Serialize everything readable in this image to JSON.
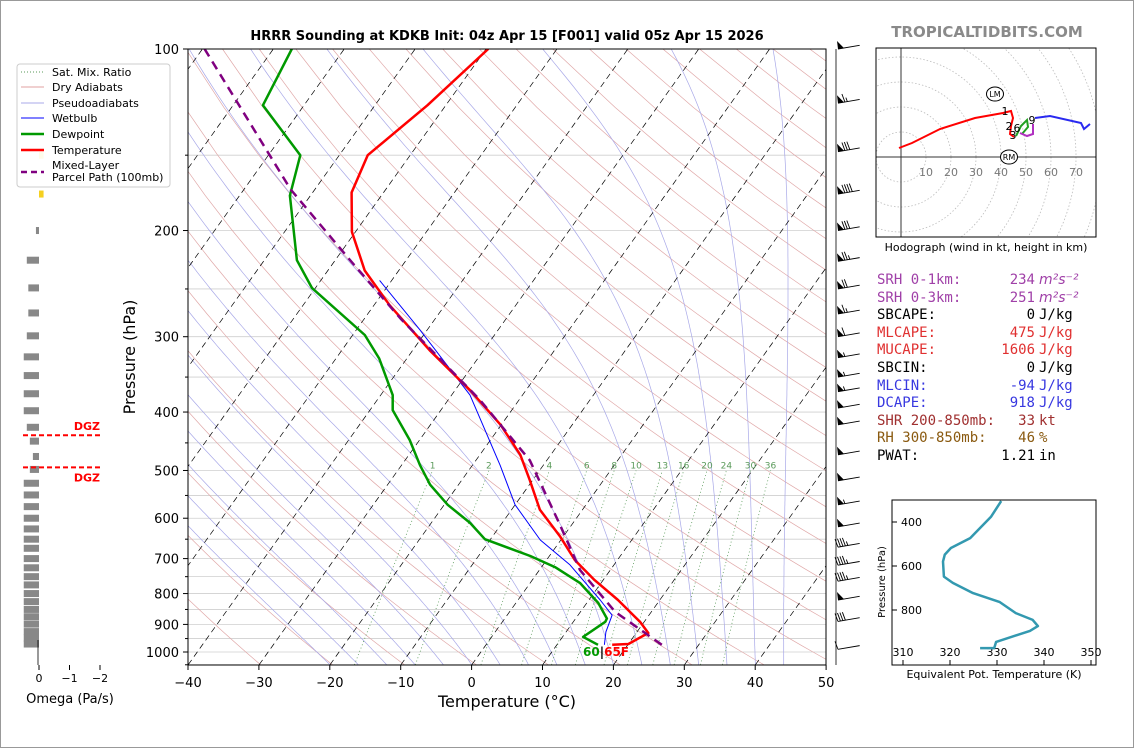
{
  "header": {
    "title": "HRRR Sounding at KDKB Init: 04z Apr 15 [F001] valid 05z Apr 15 2026",
    "site": "TROPICALTIDBITS.COM"
  },
  "legend": {
    "items": [
      {
        "label": "Sat. Mix. Ratio",
        "color": "#5a9a5a"
      },
      {
        "label": "Dry Adiabats",
        "color": "#e0a0a0"
      },
      {
        "label": "Pseudoadiabats",
        "color": "#a8a8e8"
      },
      {
        "label": "Wetbulb",
        "color": "#0000ff"
      },
      {
        "label": "Dewpoint",
        "color": "#009900"
      },
      {
        "label": "Temperature",
        "color": "#ff0000"
      },
      {
        "label": "Mixed-Layer",
        "label2": "Parcel Path (100mb)",
        "color": "#800080"
      }
    ]
  },
  "chart_data": {
    "type": "line",
    "title": "HRRR Sounding at KDKB Init: 04z Apr 15 [F001] valid 05z Apr 15 2026",
    "xlabel": "Temperature (°C)",
    "ylabel": "Pressure (hPa)",
    "xlim": [
      -40,
      50
    ],
    "ylim": [
      1050,
      100
    ],
    "grid": true,
    "legend_position": "top-left",
    "x_ticks": [
      {
        "value": -40,
        "label": "−40"
      },
      {
        "value": -30,
        "label": "−30"
      },
      {
        "value": -20,
        "label": "−20"
      },
      {
        "value": -10,
        "label": "−10"
      },
      {
        "value": 0,
        "label": "0"
      },
      {
        "value": 10,
        "label": "10"
      },
      {
        "value": 20,
        "label": "20"
      },
      {
        "value": 30,
        "label": "30"
      },
      {
        "value": 40,
        "label": "40"
      },
      {
        "value": 50,
        "label": "50"
      }
    ],
    "y_ticks": [
      {
        "value": 100,
        "label": "100"
      },
      {
        "value": 200,
        "label": "200"
      },
      {
        "value": 300,
        "label": "300"
      },
      {
        "value": 400,
        "label": "400"
      },
      {
        "value": 500,
        "label": "500"
      },
      {
        "value": 600,
        "label": "600"
      },
      {
        "value": 700,
        "label": "700"
      },
      {
        "value": 800,
        "label": "800"
      },
      {
        "value": 900,
        "label": "900"
      },
      {
        "value": 1000,
        "label": "1000"
      }
    ],
    "mixing_ratio_lines": [
      {
        "value": 1,
        "label": "1"
      },
      {
        "value": 2,
        "label": "2"
      },
      {
        "value": 4,
        "label": "4"
      },
      {
        "value": 6,
        "label": "6"
      },
      {
        "value": 8,
        "label": "8"
      },
      {
        "value": 10,
        "label": "10"
      },
      {
        "value": 13,
        "label": "13"
      },
      {
        "value": 16,
        "label": "16"
      },
      {
        "value": 20,
        "label": "20"
      },
      {
        "value": 24,
        "label": "24"
      },
      {
        "value": 30,
        "label": "30"
      },
      {
        "value": 36,
        "label": "36"
      }
    ],
    "series": [
      {
        "name": "Wetbulb",
        "color": "#0000ff",
        "points": [
          [
            973,
            16.7
          ],
          [
            926,
            15.6
          ],
          [
            869,
            14.8
          ],
          [
            820,
            11.6
          ],
          [
            717,
            3.8
          ],
          [
            652,
            -2.9
          ],
          [
            570,
            -10.0
          ],
          [
            490,
            -16.1
          ],
          [
            375,
            -27.4
          ],
          [
            292,
            -41.1
          ],
          [
            242,
            -51.7
          ]
        ]
      },
      {
        "name": "Dewpoint",
        "color": "#009900",
        "points": [
          [
            973,
            15.8
          ],
          [
            944,
            12.9
          ],
          [
            891,
            14.5
          ],
          [
            880,
            14.4
          ],
          [
            829,
            11.6
          ],
          [
            768,
            7.0
          ],
          [
            723,
            1.9
          ],
          [
            693,
            -2.7
          ],
          [
            650,
            -10.8
          ],
          [
            611,
            -14.5
          ],
          [
            570,
            -19.5
          ],
          [
            528,
            -24.0
          ],
          [
            490,
            -27.4
          ],
          [
            445,
            -31.4
          ],
          [
            397,
            -36.8
          ],
          [
            375,
            -38.3
          ],
          [
            326,
            -43.9
          ],
          [
            298,
            -48.3
          ],
          [
            249,
            -60.5
          ],
          [
            224,
            -65.4
          ],
          [
            175,
            -72.9
          ],
          [
            150,
            -75.5
          ],
          [
            124,
            -85.8
          ],
          [
            100,
            -87.4
          ]
        ]
      },
      {
        "name": "Temperature",
        "color": "#ff0000",
        "points": [
          [
            973,
            17.8
          ],
          [
            970,
            20.0
          ],
          [
            930,
            21.7
          ],
          [
            891,
            19.4
          ],
          [
            820,
            14.1
          ],
          [
            760,
            8.8
          ],
          [
            704,
            4.0
          ],
          [
            644,
            -0.4
          ],
          [
            581,
            -6.0
          ],
          [
            519,
            -10.4
          ],
          [
            471,
            -14.3
          ],
          [
            420,
            -20.1
          ],
          [
            368,
            -27.9
          ],
          [
            316,
            -37.6
          ],
          [
            266,
            -47.8
          ],
          [
            233,
            -54.8
          ],
          [
            201,
            -60.5
          ],
          [
            173,
            -64.5
          ],
          [
            150,
            -66.0
          ],
          [
            124,
            -62.6
          ],
          [
            100,
            -59.7
          ]
        ]
      },
      {
        "name": "Mixed-Layer Parcel Path (100mb)",
        "color": "#800080",
        "points": [
          [
            973,
            24.8
          ],
          [
            858,
            14.9
          ],
          [
            731,
            5.7
          ],
          [
            616,
            -1.6
          ],
          [
            481,
            -12.4
          ],
          [
            382,
            -25.5
          ],
          [
            280,
            -44.9
          ],
          [
            224,
            -57.9
          ],
          [
            171,
            -73.4
          ],
          [
            100,
            -99.7
          ]
        ]
      }
    ],
    "surface_labels": {
      "td": "60",
      "sep": "|",
      "t": "65F"
    },
    "wind_barbs": [
      {
        "p": 100,
        "kt": 50
      },
      {
        "p": 123,
        "kt": 65
      },
      {
        "p": 148,
        "kt": 80
      },
      {
        "p": 174,
        "kt": 90
      },
      {
        "p": 200,
        "kt": 80
      },
      {
        "p": 225,
        "kt": 75
      },
      {
        "p": 250,
        "kt": 70
      },
      {
        "p": 275,
        "kt": 65
      },
      {
        "p": 300,
        "kt": 60
      },
      {
        "p": 325,
        "kt": 55
      },
      {
        "p": 350,
        "kt": 55
      },
      {
        "p": 370,
        "kt": 55
      },
      {
        "p": 394,
        "kt": 50
      },
      {
        "p": 420,
        "kt": 50
      },
      {
        "p": 471,
        "kt": 50
      },
      {
        "p": 520,
        "kt": 50
      },
      {
        "p": 570,
        "kt": 55
      },
      {
        "p": 620,
        "kt": 50
      },
      {
        "p": 670,
        "kt": 45
      },
      {
        "p": 718,
        "kt": 45
      },
      {
        "p": 763,
        "kt": 45
      },
      {
        "p": 820,
        "kt": 50
      },
      {
        "p": 890,
        "kt": 40
      },
      {
        "p": 990,
        "kt": 10
      }
    ],
    "omega": {
      "xlabel": "Omega (Pa/s)",
      "x_ticks": [
        {
          "value": 0,
          "label": "0"
        },
        {
          "value": -1,
          "label": "−1"
        },
        {
          "value": -2,
          "label": "−2"
        }
      ],
      "dgz_label": "DGZ",
      "dgz_top": 437,
      "dgz_bottom": 494,
      "levels": [
        [
          150,
          -0.15
        ],
        [
          174,
          -0.15
        ],
        [
          200,
          0.1
        ],
        [
          224,
          0.4
        ],
        [
          249,
          0.35
        ],
        [
          274,
          0.35
        ],
        [
          299,
          0.4
        ],
        [
          324,
          0.5
        ],
        [
          348,
          0.5
        ],
        [
          373,
          0.5
        ],
        [
          398,
          0.5
        ],
        [
          424,
          0.4
        ],
        [
          447,
          0.3
        ],
        [
          474,
          0.2
        ],
        [
          498,
          0.3
        ],
        [
          525,
          0.5
        ],
        [
          549,
          0.5
        ],
        [
          574,
          0.5
        ],
        [
          600,
          0.5
        ],
        [
          625,
          0.5
        ],
        [
          650,
          0.5
        ],
        [
          673,
          0.5
        ],
        [
          700,
          0.5
        ],
        [
          725,
          0.5
        ],
        [
          750,
          0.5
        ],
        [
          774,
          0.5
        ],
        [
          800,
          0.5
        ],
        [
          825,
          0.5
        ],
        [
          850,
          0.5
        ],
        [
          874,
          0.5
        ],
        [
          899,
          0.5
        ],
        [
          925,
          0.5
        ],
        [
          948,
          0.5
        ],
        [
          970,
          0.5
        ]
      ]
    },
    "hodograph": {
      "caption": "Hodograph (wind in kt, height in km)",
      "ring_labels": [
        "10",
        "20",
        "30",
        "40",
        "50",
        "60",
        "70"
      ],
      "segments": [
        {
          "color": "#ff0000",
          "uv": [
            [
              -0.8,
              3.6
            ],
            [
              4.4,
              5.6
            ],
            [
              15.6,
              11.2
            ],
            [
              29.6,
              15.6
            ],
            [
              40.8,
              17.6
            ],
            [
              44,
              18.4
            ],
            [
              44.8,
              15.6
            ],
            [
              44,
              12.4
            ],
            [
              43.6,
              9.2
            ],
            [
              45.2,
              8
            ]
          ]
        },
        {
          "color": "#22a022",
          "uv": [
            [
              46,
              8.4
            ],
            [
              48,
              12.4
            ],
            [
              50.4,
              14.8
            ],
            [
              50.8,
              12
            ],
            [
              48.4,
              9.2
            ]
          ]
        },
        {
          "color": "#b030c0",
          "uv": [
            [
              47.6,
              9.6
            ],
            [
              50.4,
              8.4
            ],
            [
              52.8,
              9.2
            ],
            [
              52.8,
              13.2
            ]
          ]
        },
        {
          "color": "#2a2af0",
          "uv": [
            [
              53.6,
              15.6
            ],
            [
              59.6,
              16.4
            ],
            [
              72,
              13.6
            ],
            [
              73.2,
              11.2
            ],
            [
              75.6,
              13.2
            ]
          ]
        }
      ],
      "height_labels": [
        {
          "text": "1",
          "uv": [
            41.6,
            18.4
          ]
        },
        {
          "text": "2",
          "uv": [
            43.2,
            12.4
          ]
        },
        {
          "text": "6",
          "uv": [
            46.4,
            11.6
          ]
        },
        {
          "text": "3",
          "uv": [
            44.8,
            8.8
          ]
        },
        {
          "text": "9",
          "uv": [
            52.4,
            14.8
          ]
        }
      ],
      "storm_motion": [
        {
          "text": "LM",
          "uv": [
            37.6,
            25.2
          ]
        },
        {
          "text": "RM",
          "uv": [
            43.2,
            0
          ]
        }
      ]
    },
    "theta_e": {
      "xlabel": "Equivalent Pot. Temperature (K)",
      "ylabel": "Pressure (hPa)",
      "x_ticks": [
        "310",
        "320",
        "330",
        "340",
        "350"
      ],
      "y_ticks": [
        "400",
        "600",
        "800"
      ],
      "color": "#3399b0",
      "points": [
        [
          305,
          330.9
        ],
        [
          377,
          328.7
        ],
        [
          473,
          324.3
        ],
        [
          518,
          320.2
        ],
        [
          548,
          318.9
        ],
        [
          580,
          318.5
        ],
        [
          648,
          318.7
        ],
        [
          677,
          320.6
        ],
        [
          723,
          324.9
        ],
        [
          764,
          330.6
        ],
        [
          814,
          334
        ],
        [
          845,
          337.6
        ],
        [
          873,
          338.7
        ],
        [
          895,
          337
        ],
        [
          945,
          329.8
        ],
        [
          973,
          329.4
        ],
        [
          973,
          326.4
        ]
      ]
    }
  },
  "stats": [
    {
      "label": "SRH 0-1km:",
      "value": "234",
      "unit": "m²s⁻²",
      "color": "#a040a8",
      "italic": true
    },
    {
      "label": "SRH 0-3km:",
      "value": "251",
      "unit": "m²s⁻²",
      "color": "#a040a8",
      "italic": true
    },
    {
      "label": "SBCAPE:",
      "value": "0",
      "unit": "J/kg",
      "color": "#000000"
    },
    {
      "label": "MLCAPE:",
      "value": "475",
      "unit": "J/kg",
      "color": "#e03030"
    },
    {
      "label": "MUCAPE:",
      "value": "1606",
      "unit": "J/kg",
      "color": "#e03030"
    },
    {
      "label": "SBCIN:",
      "value": "0",
      "unit": "J/kg",
      "color": "#000000"
    },
    {
      "label": "MLCIN:",
      "value": "-94",
      "unit": "J/kg",
      "color": "#3838e0"
    },
    {
      "label": "DCAPE:",
      "value": "918",
      "unit": "J/kg",
      "color": "#3838e0"
    },
    {
      "label": "SHR 200-850mb:",
      "value": "33",
      "unit": "kt",
      "color": "#a03030"
    },
    {
      "label": "RH 300-850mb:",
      "value": "46",
      "unit": "%",
      "color": "#8a5a10"
    },
    {
      "label": "PWAT:",
      "value": "1.21",
      "unit": "in",
      "color": "#000000"
    }
  ]
}
